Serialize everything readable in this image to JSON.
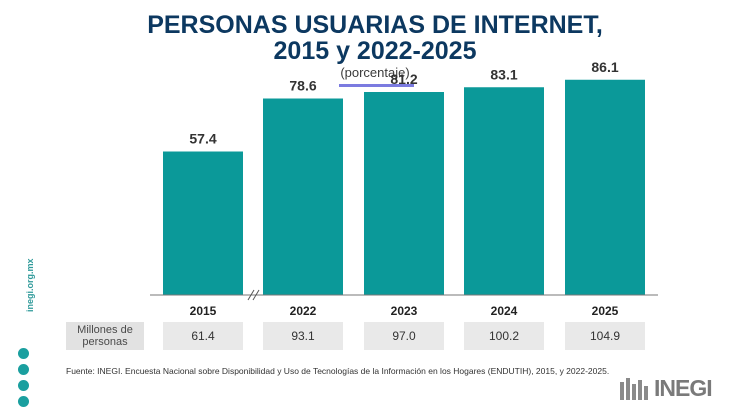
{
  "header": {
    "title_line1": "PERSONAS USUARIAS DE INTERNET,",
    "title_line2": "2015 y 2022-2025",
    "subtitle": "(porcentaje)"
  },
  "chart_data": {
    "type": "bar",
    "title": "PERSONAS USUARIAS DE INTERNET, 2015 y 2022-2025",
    "subtitle": "(porcentaje)",
    "categories": [
      "2015",
      "2022",
      "2023",
      "2024",
      "2025"
    ],
    "values": [
      57.4,
      78.6,
      81.2,
      83.1,
      86.1
    ],
    "data_labels": [
      "57.4",
      "78.6",
      "81.2",
      "83.1",
      "86.1"
    ],
    "axis_break_after": "2015",
    "ylim": [
      0,
      100
    ],
    "grid": false,
    "legend": "none",
    "bar_color": "#0b9999"
  },
  "table": {
    "row_label": "Millones de personas",
    "values": [
      "61.4",
      "93.1",
      "97.0",
      "100.2",
      "104.9"
    ]
  },
  "footer": {
    "source": "Fuente: INEGI. Encuesta Nacional sobre Disponibilidad y Uso de Tecnologías de la Información en los Hogares (ENDUTIH), 2015, y 2022-2025.",
    "site": "inegi.org.mx",
    "logo_text": "INEGI"
  },
  "social_icons": [
    "youtube-icon",
    "x-icon",
    "instagram-icon",
    "facebook-icon"
  ]
}
